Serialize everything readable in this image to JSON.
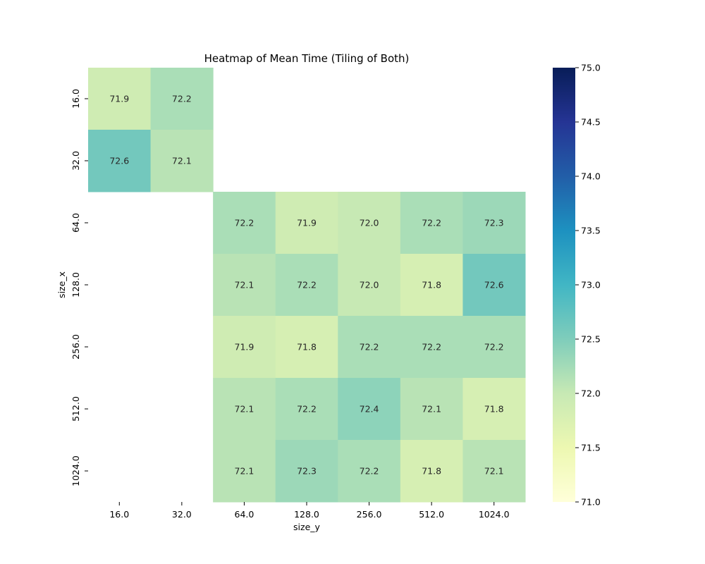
{
  "chart_data": {
    "type": "heatmap",
    "title": "Heatmap of Mean Time (Tiling of Both)",
    "xlabel": "size_y",
    "ylabel": "size_x",
    "x_categories": [
      "16.0",
      "32.0",
      "64.0",
      "128.0",
      "256.0",
      "512.0",
      "1024.0"
    ],
    "y_categories": [
      "16.0",
      "32.0",
      "64.0",
      "128.0",
      "256.0",
      "512.0",
      "1024.0"
    ],
    "values": [
      [
        71.9,
        72.2,
        null,
        null,
        null,
        null,
        null
      ],
      [
        72.6,
        72.1,
        null,
        null,
        null,
        null,
        null
      ],
      [
        null,
        null,
        72.2,
        71.9,
        72.0,
        72.2,
        72.3
      ],
      [
        null,
        null,
        72.1,
        72.2,
        72.0,
        71.8,
        72.6
      ],
      [
        null,
        null,
        71.9,
        71.8,
        72.2,
        72.2,
        72.2
      ],
      [
        null,
        null,
        72.1,
        72.2,
        72.4,
        72.1,
        71.8
      ],
      [
        null,
        null,
        72.1,
        72.3,
        72.2,
        71.8,
        72.1
      ]
    ],
    "value_format": 1,
    "colormap": "YlGnBu",
    "colorbar": {
      "min": 71.0,
      "max": 75.0,
      "ticks": [
        "71.0",
        "71.5",
        "72.0",
        "72.5",
        "73.0",
        "73.5",
        "74.0",
        "74.5",
        "75.0"
      ]
    },
    "grid": false,
    "legend": "colorbar-right"
  }
}
